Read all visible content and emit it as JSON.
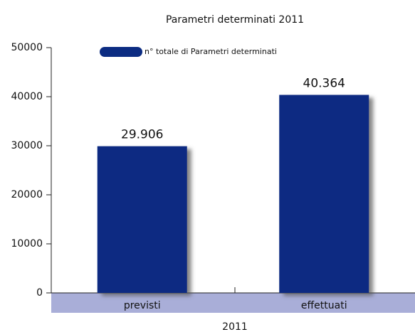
{
  "chart_data": {
    "type": "bar",
    "title": "Parametri determinati 2011",
    "x_label": "2011",
    "categories": [
      "previsti",
      "effettuati"
    ],
    "series": [
      {
        "name": "n° totale di Parametri determinati",
        "color": "#0c2c82",
        "values": [
          29906,
          40364
        ],
        "value_labels": [
          "29.906",
          "40.364"
        ]
      }
    ],
    "ylim": [
      0,
      50000
    ],
    "yticks": [
      0,
      10000,
      20000,
      30000,
      40000,
      50000
    ],
    "grid": false,
    "legend": "top-left"
  }
}
